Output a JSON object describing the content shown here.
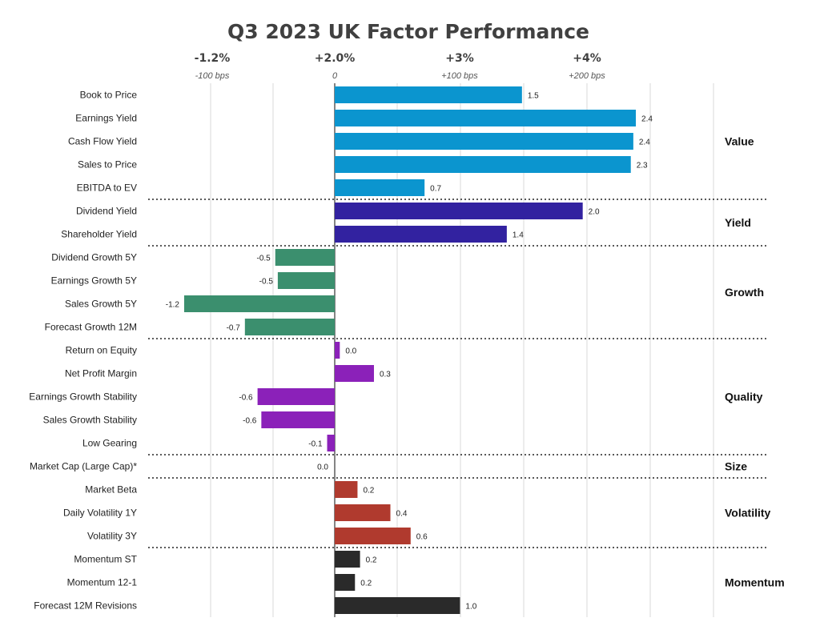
{
  "chart_data": {
    "type": "bar",
    "orientation": "horizontal",
    "title": "Q3 2023 UK Factor Performance",
    "top_labels": [
      "-1.2%",
      "+2.0%",
      "+3%",
      "+4%"
    ],
    "bps_labels": [
      "-100 bps",
      "0",
      "+100 bps",
      "+200 bps"
    ],
    "xlim": [
      -1.45,
      2.95
    ],
    "categories": [
      "Book to Price",
      "Earnings Yield",
      "Cash Flow Yield",
      "Sales to Price",
      "EBITDA to EV",
      "Dividend Yield",
      "Shareholder Yield",
      "Dividend Growth 5Y",
      "Earnings Growth 5Y",
      "Sales Growth 5Y",
      "Forecast Growth 12M",
      "Return on Equity",
      "Net Profit Margin",
      "Earnings Growth Stability",
      "Sales Growth Stability",
      "Low Gearing",
      "Market Cap (Large Cap)*",
      "Market Beta",
      "Daily Volatility 1Y",
      "Volatility 3Y",
      "Momentum ST",
      "Momentum 12-1",
      "Forecast 12M Revisions"
    ],
    "values": [
      1.48,
      2.38,
      2.36,
      2.34,
      0.71,
      1.96,
      1.36,
      -0.47,
      -0.45,
      -1.19,
      -0.71,
      0.04,
      0.31,
      -0.61,
      -0.58,
      -0.06,
      0.0,
      0.18,
      0.44,
      0.6,
      0.2,
      0.16,
      0.99
    ],
    "value_labels": [
      "1.5",
      "2.4",
      "2.4",
      "2.3",
      "0.7",
      "2.0",
      "1.4",
      "-0.5",
      "-0.5",
      "-1.2",
      "-0.7",
      "0.0",
      "0.3",
      "-0.6",
      "-0.6",
      "-0.1",
      "0.0",
      "0.2",
      "0.4",
      "0.6",
      "0.2",
      "0.2",
      "1.0"
    ],
    "groups": [
      {
        "name": "Value",
        "count": 5,
        "color": "#0b95cf"
      },
      {
        "name": "Yield",
        "count": 2,
        "color": "#3222a0"
      },
      {
        "name": "Growth",
        "count": 4,
        "color": "#3b8f6e"
      },
      {
        "name": "Quality",
        "count": 5,
        "color": "#8b21b9"
      },
      {
        "name": "Size",
        "count": 1,
        "color": "#888888"
      },
      {
        "name": "Volatility",
        "count": 3,
        "color": "#b03a2e"
      },
      {
        "name": "Momentum",
        "count": 3,
        "color": "#2a2a2a"
      }
    ]
  }
}
